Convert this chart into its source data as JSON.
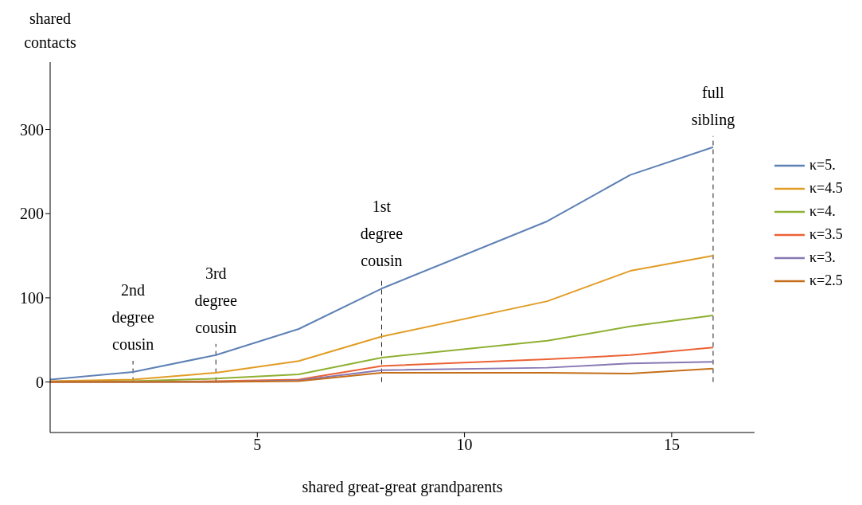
{
  "chart_data": {
    "type": "line",
    "xlabel": "shared great-great grandparents",
    "ylabel": "shared\ncontacts",
    "x": [
      0,
      2,
      4,
      6,
      8,
      12,
      14,
      16
    ],
    "xlim": [
      0,
      17
    ],
    "xticks": [
      5,
      10,
      15
    ],
    "ylim": [
      -60,
      380
    ],
    "yticks": [
      0,
      100,
      200,
      300
    ],
    "legend": "right",
    "marker": "none",
    "line_style": "solid",
    "series": [
      {
        "name": "κ=5.",
        "color": "#5e81b5",
        "values": [
          3,
          12,
          32,
          63,
          111,
          191,
          246,
          279
        ]
      },
      {
        "name": "κ=4.5",
        "color": "#e19c24",
        "values": [
          1,
          3,
          11,
          25,
          54,
          96,
          132,
          150
        ]
      },
      {
        "name": "κ=4.",
        "color": "#8fb032",
        "values": [
          0,
          1,
          4,
          9,
          29,
          49,
          66,
          79
        ]
      },
      {
        "name": "κ=3.5",
        "color": "#eb6235",
        "values": [
          0,
          0,
          1,
          3,
          19,
          27,
          32,
          41
        ]
      },
      {
        "name": "κ=3.",
        "color": "#8778b3",
        "values": [
          0,
          0,
          0,
          2,
          14,
          17,
          22,
          24
        ]
      },
      {
        "name": "κ=2.5",
        "color": "#c56e1a",
        "values": [
          0,
          0,
          0,
          1,
          11,
          11,
          10,
          16
        ]
      }
    ],
    "ref_lines": [
      {
        "axis": "x",
        "value": 2,
        "label": "2nd\ndegree\ncousin",
        "line_style": "dashed",
        "color": "#222222"
      },
      {
        "axis": "x",
        "value": 4,
        "label": "3rd\ndegree\ncousin",
        "line_style": "dashed",
        "color": "#222222"
      },
      {
        "axis": "x",
        "value": 8,
        "label": "1st\ndegree\ncousin",
        "line_style": "dashed",
        "color": "#222222"
      },
      {
        "axis": "x",
        "value": 16,
        "label": "full\nsibling",
        "line_style": "dashed",
        "color": "#222222"
      }
    ]
  }
}
